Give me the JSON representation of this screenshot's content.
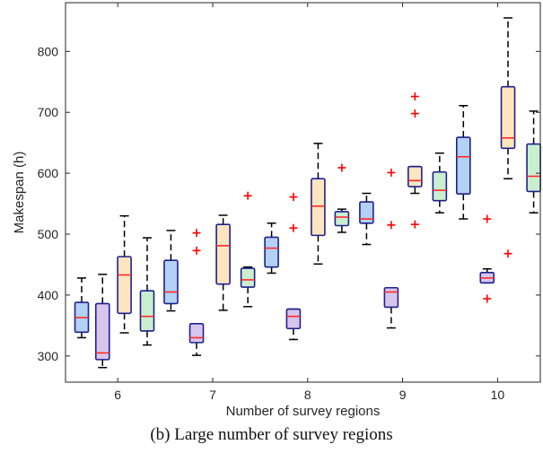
{
  "caption": "(b) Large number of survey regions",
  "chart_data": {
    "type": "boxplot",
    "xlabel": "Number of survey regions",
    "ylabel": "Makespan (h)",
    "xlim": [
      5.45,
      10.45
    ],
    "ylim": [
      257,
      880
    ],
    "xticks": [
      6,
      7,
      8,
      9,
      10
    ],
    "yticks": [
      300,
      400,
      500,
      600,
      700,
      800
    ],
    "grid": false,
    "colors": {
      "box_edge": "#1f1f8f",
      "median": "#ff2a2a",
      "whisker": "#000000",
      "outlier": "#ff0000",
      "blue": "#b3d1f2",
      "purple": "#d6c6ec",
      "orange": "#fde5bf",
      "green": "#c9efcf"
    },
    "boxes": [
      {
        "x": 5.62,
        "fill": "blue",
        "q1": 339,
        "median": 363,
        "q3": 388,
        "whisker_low": 330,
        "whisker_high": 428,
        "outliers": []
      },
      {
        "x": 5.84,
        "fill": "purple",
        "q1": 294,
        "median": 305,
        "q3": 386,
        "whisker_low": 281,
        "whisker_high": 434,
        "outliers": []
      },
      {
        "x": 6.07,
        "fill": "orange",
        "q1": 370,
        "median": 433,
        "q3": 463,
        "whisker_low": 338,
        "whisker_high": 530,
        "outliers": []
      },
      {
        "x": 6.31,
        "fill": "green",
        "q1": 341,
        "median": 365,
        "q3": 407,
        "whisker_low": 318,
        "whisker_high": 494,
        "outliers": []
      },
      {
        "x": 6.56,
        "fill": "blue",
        "q1": 386,
        "median": 405,
        "q3": 457,
        "whisker_low": 374,
        "whisker_high": 506,
        "outliers": []
      },
      {
        "x": 6.83,
        "fill": "purple",
        "q1": 322,
        "median": 330,
        "q3": 353,
        "whisker_low": 301,
        "whisker_high": 353,
        "outliers": [
          473,
          502
        ]
      },
      {
        "x": 7.11,
        "fill": "orange",
        "q1": 418,
        "median": 481,
        "q3": 516,
        "whisker_low": 375,
        "whisker_high": 531,
        "outliers": []
      },
      {
        "x": 7.37,
        "fill": "green",
        "q1": 413,
        "median": 425,
        "q3": 444,
        "whisker_low": 381,
        "whisker_high": 446,
        "outliers": [
          563
        ]
      },
      {
        "x": 7.62,
        "fill": "blue",
        "q1": 446,
        "median": 477,
        "q3": 495,
        "whisker_low": 436,
        "whisker_high": 518,
        "outliers": []
      },
      {
        "x": 7.85,
        "fill": "purple",
        "q1": 345,
        "median": 365,
        "q3": 377,
        "whisker_low": 327,
        "whisker_high": 377,
        "outliers": [
          510,
          561
        ]
      },
      {
        "x": 8.11,
        "fill": "orange",
        "q1": 498,
        "median": 546,
        "q3": 591,
        "whisker_low": 451,
        "whisker_high": 649,
        "outliers": []
      },
      {
        "x": 8.36,
        "fill": "green",
        "q1": 514,
        "median": 528,
        "q3": 537,
        "whisker_low": 503,
        "whisker_high": 541,
        "outliers": [
          609
        ]
      },
      {
        "x": 8.62,
        "fill": "blue",
        "q1": 518,
        "median": 525,
        "q3": 553,
        "whisker_low": 483,
        "whisker_high": 567,
        "outliers": []
      },
      {
        "x": 8.88,
        "fill": "purple",
        "q1": 380,
        "median": 405,
        "q3": 412,
        "whisker_low": 346,
        "whisker_high": 412,
        "outliers": [
          515,
          601
        ]
      },
      {
        "x": 9.13,
        "fill": "orange",
        "q1": 578,
        "median": 588,
        "q3": 611,
        "whisker_low": 567,
        "whisker_high": 611,
        "outliers": [
          516,
          698,
          726
        ]
      },
      {
        "x": 9.39,
        "fill": "green",
        "q1": 555,
        "median": 572,
        "q3": 602,
        "whisker_low": 535,
        "whisker_high": 633,
        "outliers": []
      },
      {
        "x": 9.64,
        "fill": "blue",
        "q1": 566,
        "median": 627,
        "q3": 659,
        "whisker_low": 525,
        "whisker_high": 711,
        "outliers": []
      },
      {
        "x": 9.89,
        "fill": "purple",
        "q1": 420,
        "median": 428,
        "q3": 437,
        "whisker_low": 420,
        "whisker_high": 443,
        "outliers": [
          394,
          525
        ]
      },
      {
        "x": 10.11,
        "fill": "orange",
        "q1": 641,
        "median": 658,
        "q3": 742,
        "whisker_low": 591,
        "whisker_high": 855,
        "outliers": [
          468
        ]
      },
      {
        "x": 10.38,
        "fill": "green",
        "q1": 570,
        "median": 595,
        "q3": 648,
        "whisker_low": 535,
        "whisker_high": 702,
        "outliers": []
      }
    ]
  }
}
